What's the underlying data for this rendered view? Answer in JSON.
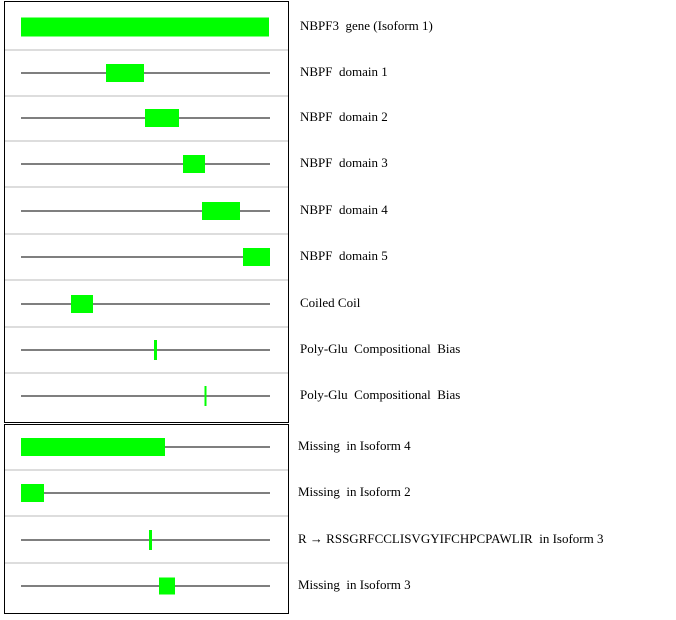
{
  "rows": [
    "NBPF3  gene (Isoform 1)",
    "NBPF  domain 1",
    "NBPF  domain 2",
    "NBPF  domain 3",
    "NBPF  domain 4",
    "NBPF  domain 5",
    "Coiled Coil",
    "Poly-Glu  Compositional  Bias",
    "Poly-Glu  Compositional  Bias",
    "Missing  in Isoform 4",
    "Missing  in Isoform 2",
    "R → RSSGRFCCLISVGYIFCHPCPAWLIR  in Isoform 3",
    "Missing  in Isoform 3"
  ]
}
